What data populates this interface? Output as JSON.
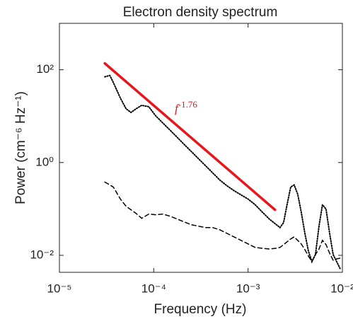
{
  "chart_data": {
    "type": "line",
    "title": "Electron density spectrum",
    "xlabel": "Frequency (Hz)",
    "ylabel": "Power (cm⁻⁶ Hz⁻¹)",
    "xscale": "log",
    "yscale": "log",
    "xlim": [
      1e-05,
      0.01
    ],
    "ylim": [
      0.0043,
      1000
    ],
    "xticks": [
      {
        "value": 1e-05,
        "label": "10⁻⁵"
      },
      {
        "value": 0.0001,
        "label": "10⁻⁴"
      },
      {
        "value": 0.001,
        "label": "10⁻³"
      },
      {
        "value": 0.01,
        "label": "10⁻²"
      }
    ],
    "yticks": [
      {
        "value": 0.01,
        "label": "10⁻²"
      },
      {
        "value": 1,
        "label": "10⁰"
      },
      {
        "value": 100,
        "label": "10²"
      }
    ],
    "x": [
      3.03e-05,
      3.42e-05,
      3.73e-05,
      4.43e-05,
      5.09e-05,
      5.74e-05,
      6.49e-05,
      7.45e-05,
      8.85e-05,
      0.000105,
      0.000125,
      0.000149,
      0.000177,
      0.00021,
      0.00025,
      0.000298,
      0.000354,
      0.000421,
      0.0005,
      0.000594,
      0.000708,
      0.000841,
      0.001,
      0.00119,
      0.00141,
      0.00168,
      0.002,
      0.00218,
      0.00238,
      0.00259,
      0.00283,
      0.00308,
      0.00336,
      0.00366,
      0.004,
      0.00436,
      0.00475,
      0.00518,
      0.00565,
      0.00615,
      0.00671,
      0.00732,
      0.00798,
      0.0087,
      0.00949
    ],
    "series": [
      {
        "color": "#000000",
        "dash": "dotted",
        "values": [
          70.3,
          75.4,
          53.0,
          24.4,
          14.4,
          12.0,
          14.4,
          17.1,
          16.0,
          10.1,
          7.1,
          4.98,
          3.5,
          2.46,
          1.73,
          1.21,
          0.853,
          0.6,
          0.422,
          0.318,
          0.248,
          0.201,
          0.163,
          0.123,
          0.0861,
          0.0605,
          0.0456,
          0.0396,
          0.0507,
          0.123,
          0.296,
          0.329,
          0.208,
          0.0861,
          0.0299,
          0.0124,
          0.00728,
          0.0104,
          0.0425,
          0.123,
          0.0991,
          0.0299,
          0.0104,
          0.00728,
          0.00512
        ]
      },
      {
        "color": "#000000",
        "dash": "dashed",
        "values": [
          0.379,
          0.329,
          0.296,
          0.163,
          0.114,
          0.0957,
          0.0802,
          0.0627,
          0.0774,
          0.0748,
          0.0774,
          0.0697,
          0.0605,
          0.0525,
          0.0456,
          0.0425,
          0.0396,
          0.0396,
          0.0356,
          0.0299,
          0.025,
          0.021,
          0.0176,
          0.0148,
          0.0142,
          0.0137,
          0.0142,
          0.0148,
          0.017,
          0.0195,
          0.0225,
          0.025,
          0.021,
          0.0176,
          0.0133,
          0.00966,
          0.00728,
          0.0104,
          0.0137,
          0.021,
          0.017,
          0.0111,
          0.00782,
          0.00838,
          0.00869
        ]
      },
      {
        "color": "#e8161b",
        "dash": "solid",
        "x": [
          3.03e-05,
          0.00193
        ],
        "values": [
          137,
          0.0957
        ]
      }
    ],
    "annotation": {
      "text": "f",
      "superscript": "-1.76",
      "color": "#e8161b"
    }
  }
}
